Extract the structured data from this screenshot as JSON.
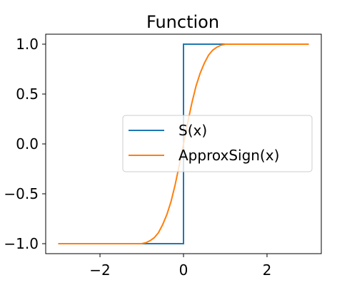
{
  "chart_data": {
    "type": "line",
    "title": "Function",
    "xlabel": "",
    "ylabel": "",
    "xlim": [
      -3.3,
      3.3
    ],
    "ylim": [
      -1.1,
      1.1
    ],
    "xticks": [
      -2,
      0,
      2
    ],
    "xtick_labels": [
      "−2",
      "0",
      "2"
    ],
    "yticks": [
      -1.0,
      -0.5,
      0.0,
      0.5,
      1.0
    ],
    "ytick_labels": [
      "−1.0",
      "−0.5",
      "0.0",
      "0.5",
      "1.0"
    ],
    "grid": false,
    "legend_position": "center-right",
    "series": [
      {
        "name": "S(x)",
        "color": "#1f77b4",
        "x": [
          -3,
          0,
          0,
          3
        ],
        "y": [
          -1,
          -1,
          1,
          1
        ]
      },
      {
        "name": "ApproxSign(x)",
        "color": "#ff7f0e",
        "x": [
          -3,
          -1.0,
          -0.9,
          -0.8,
          -0.7,
          -0.6,
          -0.5,
          -0.4,
          -0.3,
          -0.2,
          -0.1,
          0,
          0.1,
          0.2,
          0.3,
          0.4,
          0.5,
          0.6,
          0.7,
          0.8,
          0.9,
          1.0,
          3
        ],
        "y": [
          -1,
          -1,
          -0.99,
          -0.97,
          -0.94,
          -0.89,
          -0.81,
          -0.71,
          -0.58,
          -0.41,
          -0.21,
          0,
          0.21,
          0.41,
          0.58,
          0.71,
          0.81,
          0.89,
          0.94,
          0.97,
          0.99,
          1,
          1
        ]
      }
    ]
  }
}
